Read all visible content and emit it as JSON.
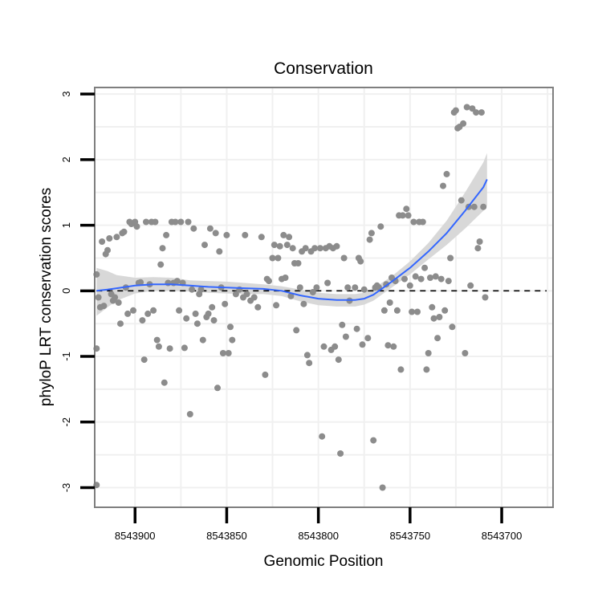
{
  "chart_data": {
    "type": "scatter",
    "title": "Conservation",
    "xlabel": "Genomic Position",
    "ylabel": "phyloP LRT conservation scores",
    "x_reversed": true,
    "xlim": [
      8543922,
      8543672
    ],
    "ylim": [
      -3.3,
      3.1
    ],
    "xticks": [
      8543900,
      8543850,
      8543800,
      8543750,
      8543700
    ],
    "yticks": [
      -3,
      -2,
      -1,
      0,
      1,
      2,
      3
    ],
    "reference_line": {
      "y": 0,
      "style": "dashed"
    },
    "colors": {
      "points": "#8c8c8c",
      "smooth": "#3366ff",
      "ribbon": "#d6d6d6",
      "grid": "#f0f0f0",
      "border": "#7f7f7f"
    },
    "series": [
      {
        "name": "scores",
        "kind": "points",
        "points": [
          [
            8543921,
            0.25
          ],
          [
            8543921,
            -0.88
          ],
          [
            8543921,
            -2.96
          ],
          [
            8543920,
            -0.1
          ],
          [
            8543919,
            -0.25
          ],
          [
            8543918,
            0.75
          ],
          [
            8543917,
            -0.23
          ],
          [
            8543916,
            0.56
          ],
          [
            8543915,
            0.62
          ],
          [
            8543914,
            0.8
          ],
          [
            8543913,
            -0.05
          ],
          [
            8543912,
            -0.15
          ],
          [
            8543911,
            -0.1
          ],
          [
            8543910,
            0.82
          ],
          [
            8543909,
            -0.18
          ],
          [
            8543908,
            -0.5
          ],
          [
            8543907,
            0.88
          ],
          [
            8543906,
            0.9
          ],
          [
            8543905,
            0.05
          ],
          [
            8543904,
            -0.35
          ],
          [
            8543903,
            1.05
          ],
          [
            8543902,
            1.02
          ],
          [
            8543901,
            -0.3
          ],
          [
            8543900,
            1.05
          ],
          [
            8543899,
            0.98
          ],
          [
            8543898,
            0.12
          ],
          [
            8543897,
            0.13
          ],
          [
            8543896,
            -0.45
          ],
          [
            8543895,
            -1.05
          ],
          [
            8543894,
            1.05
          ],
          [
            8543893,
            -0.35
          ],
          [
            8543892,
            0.1
          ],
          [
            8543891,
            1.05
          ],
          [
            8543890,
            -0.3
          ],
          [
            8543889,
            1.05
          ],
          [
            8543888,
            -0.75
          ],
          [
            8543887,
            -0.85
          ],
          [
            8543886,
            0.4
          ],
          [
            8543885,
            0.65
          ],
          [
            8543884,
            -1.4
          ],
          [
            8543883,
            0.85
          ],
          [
            8543882,
            0.12
          ],
          [
            8543881,
            -0.88
          ],
          [
            8543880,
            1.05
          ],
          [
            8543879,
            0.12
          ],
          [
            8543878,
            1.05
          ],
          [
            8543877,
            0.15
          ],
          [
            8543876,
            -0.3
          ],
          [
            8543875,
            1.05
          ],
          [
            8543874,
            0.12
          ],
          [
            8543873,
            -0.87
          ],
          [
            8543872,
            -0.42
          ],
          [
            8543871,
            1.05
          ],
          [
            8543870,
            -1.88
          ],
          [
            8543869,
            0.02
          ],
          [
            8543868,
            0.95
          ],
          [
            8543867,
            -0.35
          ],
          [
            8543866,
            -0.5
          ],
          [
            8543865,
            -0.05
          ],
          [
            8543864,
            0.02
          ],
          [
            8543863,
            -0.75
          ],
          [
            8543862,
            0.7
          ],
          [
            8543861,
            -0.4
          ],
          [
            8543860,
            -0.35
          ],
          [
            8543859,
            0.95
          ],
          [
            8543858,
            -0.25
          ],
          [
            8543857,
            -0.45
          ],
          [
            8543856,
            0.88
          ],
          [
            8543855,
            -1.48
          ],
          [
            8543854,
            0.6
          ],
          [
            8543853,
            0.05
          ],
          [
            8543852,
            -0.95
          ],
          [
            8543851,
            -0.2
          ],
          [
            8543850,
            0.85
          ],
          [
            8543849,
            -0.95
          ],
          [
            8543848,
            -0.55
          ],
          [
            8543847,
            -0.75
          ],
          [
            8543845,
            -0.05
          ],
          [
            8543843,
            0.02
          ],
          [
            8543841,
            -0.1
          ],
          [
            8543840,
            0.85
          ],
          [
            8543839,
            -0.05
          ],
          [
            8543837,
            -0.15
          ],
          [
            8543835,
            -0.1
          ],
          [
            8543833,
            -0.25
          ],
          [
            8543831,
            0.82
          ],
          [
            8543829,
            -1.28
          ],
          [
            8543828,
            0.18
          ],
          [
            8543827,
            0.15
          ],
          [
            8543825,
            0.5
          ],
          [
            8543824,
            0.7
          ],
          [
            8543823,
            -0.22
          ],
          [
            8543822,
            0.5
          ],
          [
            8543821,
            0.68
          ],
          [
            8543820,
            0.18
          ],
          [
            8543819,
            0.85
          ],
          [
            8543818,
            0.2
          ],
          [
            8543817,
            0.7
          ],
          [
            8543816,
            0.82
          ],
          [
            8543815,
            -0.08
          ],
          [
            8543814,
            0.65
          ],
          [
            8543813,
            0.42
          ],
          [
            8543812,
            -0.6
          ],
          [
            8543811,
            0.42
          ],
          [
            8543810,
            0.05
          ],
          [
            8543809,
            0.6
          ],
          [
            8543808,
            -0.2
          ],
          [
            8543807,
            0.65
          ],
          [
            8543806,
            -0.98
          ],
          [
            8543805,
            -1.1
          ],
          [
            8543804,
            0.6
          ],
          [
            8543803,
            -0.02
          ],
          [
            8543802,
            0.65
          ],
          [
            8543801,
            0.05
          ],
          [
            8543799,
            0.65
          ],
          [
            8543798,
            -2.22
          ],
          [
            8543797,
            -0.85
          ],
          [
            8543796,
            0.65
          ],
          [
            8543795,
            0.12
          ],
          [
            8543794,
            0.68
          ],
          [
            8543793,
            -0.9
          ],
          [
            8543792,
            0.65
          ],
          [
            8543791,
            -0.85
          ],
          [
            8543790,
            0.68
          ],
          [
            8543789,
            -1.05
          ],
          [
            8543788,
            -2.48
          ],
          [
            8543787,
            -0.52
          ],
          [
            8543786,
            0.5
          ],
          [
            8543785,
            -0.7
          ],
          [
            8543784,
            0.05
          ],
          [
            8543783,
            -0.15
          ],
          [
            8543780,
            0.05
          ],
          [
            8543779,
            -0.58
          ],
          [
            8543778,
            0.5
          ],
          [
            8543777,
            0.45
          ],
          [
            8543776,
            -0.82
          ],
          [
            8543775,
            0.02
          ],
          [
            8543773,
            -0.72
          ],
          [
            8543772,
            0.78
          ],
          [
            8543771,
            0.88
          ],
          [
            8543770,
            -2.28
          ],
          [
            8543769,
            0.05
          ],
          [
            8543768,
            0.08
          ],
          [
            8543767,
            0.05
          ],
          [
            8543766,
            0.98
          ],
          [
            8543765,
            -3.0
          ],
          [
            8543764,
            -0.3
          ],
          [
            8543763,
            0.1
          ],
          [
            8543762,
            -0.83
          ],
          [
            8543761,
            -0.18
          ],
          [
            8543760,
            0.2
          ],
          [
            8543759,
            -0.85
          ],
          [
            8543758,
            0.15
          ],
          [
            8543757,
            -0.3
          ],
          [
            8543756,
            1.15
          ],
          [
            8543755,
            -1.2
          ],
          [
            8543754,
            1.15
          ],
          [
            8543753,
            0.18
          ],
          [
            8543752,
            1.25
          ],
          [
            8543751,
            1.15
          ],
          [
            8543750,
            0.08
          ],
          [
            8543749,
            -0.32
          ],
          [
            8543748,
            1.05
          ],
          [
            8543747,
            0.22
          ],
          [
            8543746,
            -0.32
          ],
          [
            8543745,
            1.05
          ],
          [
            8543744,
            0.18
          ],
          [
            8543743,
            1.05
          ],
          [
            8543742,
            0.35
          ],
          [
            8543741,
            -1.2
          ],
          [
            8543740,
            -0.95
          ],
          [
            8543739,
            0.2
          ],
          [
            8543738,
            -0.25
          ],
          [
            8543737,
            -0.42
          ],
          [
            8543736,
            0.22
          ],
          [
            8543735,
            -0.72
          ],
          [
            8543734,
            -0.4
          ],
          [
            8543733,
            0.18
          ],
          [
            8543732,
            1.6
          ],
          [
            8543731,
            -0.3
          ],
          [
            8543730,
            1.78
          ],
          [
            8543729,
            0.15
          ],
          [
            8543728,
            0.5
          ],
          [
            8543727,
            -0.55
          ],
          [
            8543726,
            2.72
          ],
          [
            8543725,
            2.75
          ],
          [
            8543724,
            2.48
          ],
          [
            8543723,
            2.5
          ],
          [
            8543722,
            1.38
          ],
          [
            8543721,
            2.55
          ],
          [
            8543720,
            -0.95
          ],
          [
            8543719,
            2.8
          ],
          [
            8543718,
            1.28
          ],
          [
            8543717,
            0.08
          ],
          [
            8543716,
            2.78
          ],
          [
            8543715,
            1.28
          ],
          [
            8543714,
            2.72
          ],
          [
            8543713,
            0.65
          ],
          [
            8543712,
            0.75
          ],
          [
            8543711,
            2.72
          ],
          [
            8543710,
            1.28
          ],
          [
            8543709,
            -0.1
          ]
        ]
      },
      {
        "name": "smooth fit",
        "kind": "line",
        "points": [
          [
            8543921,
            0.0
          ],
          [
            8543915,
            0.02
          ],
          [
            8543910,
            0.04
          ],
          [
            8543900,
            0.08
          ],
          [
            8543890,
            0.1
          ],
          [
            8543880,
            0.1
          ],
          [
            8543870,
            0.08
          ],
          [
            8543860,
            0.06
          ],
          [
            8543850,
            0.05
          ],
          [
            8543840,
            0.04
          ],
          [
            8543830,
            0.03
          ],
          [
            8543820,
            0.0
          ],
          [
            8543810,
            -0.07
          ],
          [
            8543800,
            -0.12
          ],
          [
            8543790,
            -0.14
          ],
          [
            8543780,
            -0.14
          ],
          [
            8543775,
            -0.12
          ],
          [
            8543770,
            -0.06
          ],
          [
            8543765,
            0.04
          ],
          [
            8543760,
            0.14
          ],
          [
            8543750,
            0.35
          ],
          [
            8543740,
            0.6
          ],
          [
            8543730,
            0.88
          ],
          [
            8543720,
            1.22
          ],
          [
            8543710,
            1.58
          ],
          [
            8543708,
            1.7
          ]
        ]
      },
      {
        "name": "confidence band",
        "kind": "ribbon",
        "upper": [
          [
            8543921,
            0.35
          ],
          [
            8543915,
            0.3
          ],
          [
            8543910,
            0.24
          ],
          [
            8543900,
            0.2
          ],
          [
            8543890,
            0.21
          ],
          [
            8543880,
            0.2
          ],
          [
            8543870,
            0.16
          ],
          [
            8543860,
            0.15
          ],
          [
            8543850,
            0.14
          ],
          [
            8543840,
            0.12
          ],
          [
            8543830,
            0.1
          ],
          [
            8543820,
            0.07
          ],
          [
            8543810,
            0.02
          ],
          [
            8543800,
            -0.03
          ],
          [
            8543790,
            -0.05
          ],
          [
            8543780,
            -0.05
          ],
          [
            8543775,
            -0.03
          ],
          [
            8543770,
            0.04
          ],
          [
            8543765,
            0.13
          ],
          [
            8543760,
            0.22
          ],
          [
            8543750,
            0.45
          ],
          [
            8543740,
            0.73
          ],
          [
            8543730,
            1.07
          ],
          [
            8543720,
            1.5
          ],
          [
            8543710,
            1.96
          ],
          [
            8543708,
            2.1
          ]
        ],
        "lower": [
          [
            8543921,
            -0.38
          ],
          [
            8543915,
            -0.25
          ],
          [
            8543910,
            -0.15
          ],
          [
            8543900,
            -0.04
          ],
          [
            8543890,
            0.0
          ],
          [
            8543880,
            0.0
          ],
          [
            8543870,
            -0.01
          ],
          [
            8543860,
            -0.03
          ],
          [
            8543850,
            -0.04
          ],
          [
            8543840,
            -0.05
          ],
          [
            8543830,
            -0.05
          ],
          [
            8543820,
            -0.08
          ],
          [
            8543810,
            -0.16
          ],
          [
            8543800,
            -0.22
          ],
          [
            8543790,
            -0.24
          ],
          [
            8543780,
            -0.24
          ],
          [
            8543775,
            -0.21
          ],
          [
            8543770,
            -0.15
          ],
          [
            8543765,
            -0.05
          ],
          [
            8543760,
            0.05
          ],
          [
            8543750,
            0.25
          ],
          [
            8543740,
            0.48
          ],
          [
            8543730,
            0.7
          ],
          [
            8543720,
            0.95
          ],
          [
            8543710,
            1.22
          ],
          [
            8543708,
            1.3
          ]
        ]
      }
    ]
  }
}
